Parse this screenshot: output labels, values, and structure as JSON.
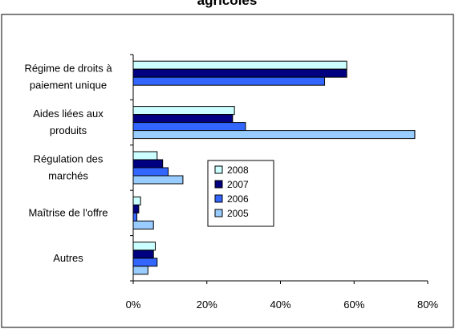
{
  "chart_data": {
    "type": "bar",
    "orientation": "horizontal",
    "title": "agricoles",
    "xlabel": "",
    "ylabel": "",
    "xlim": [
      0,
      80
    ],
    "x_ticks": [
      "0%",
      "20%",
      "40%",
      "60%",
      "80%"
    ],
    "x_tick_values": [
      0,
      20,
      40,
      60,
      80
    ],
    "grid": false,
    "legend_position": "center",
    "categories": [
      [
        "Régime de droits à",
        "paiement unique"
      ],
      [
        "Aides liées aux",
        "produits"
      ],
      [
        "Régulation des",
        "marchés"
      ],
      [
        "Maîtrise de l'offre"
      ],
      [
        "Autres"
      ]
    ],
    "series": [
      {
        "name": "2008",
        "color": "#ccffff",
        "values": [
          58,
          27.5,
          6.5,
          2,
          6
        ]
      },
      {
        "name": "2007",
        "color": "#000080",
        "values": [
          58,
          27,
          8,
          1.5,
          5.5
        ]
      },
      {
        "name": "2006",
        "color": "#3366ff",
        "values": [
          52,
          30.5,
          9.5,
          1,
          6.5
        ]
      },
      {
        "name": "2005",
        "color": "#99ccff",
        "values": [
          0,
          76.5,
          13.5,
          5.5,
          4
        ]
      }
    ]
  }
}
